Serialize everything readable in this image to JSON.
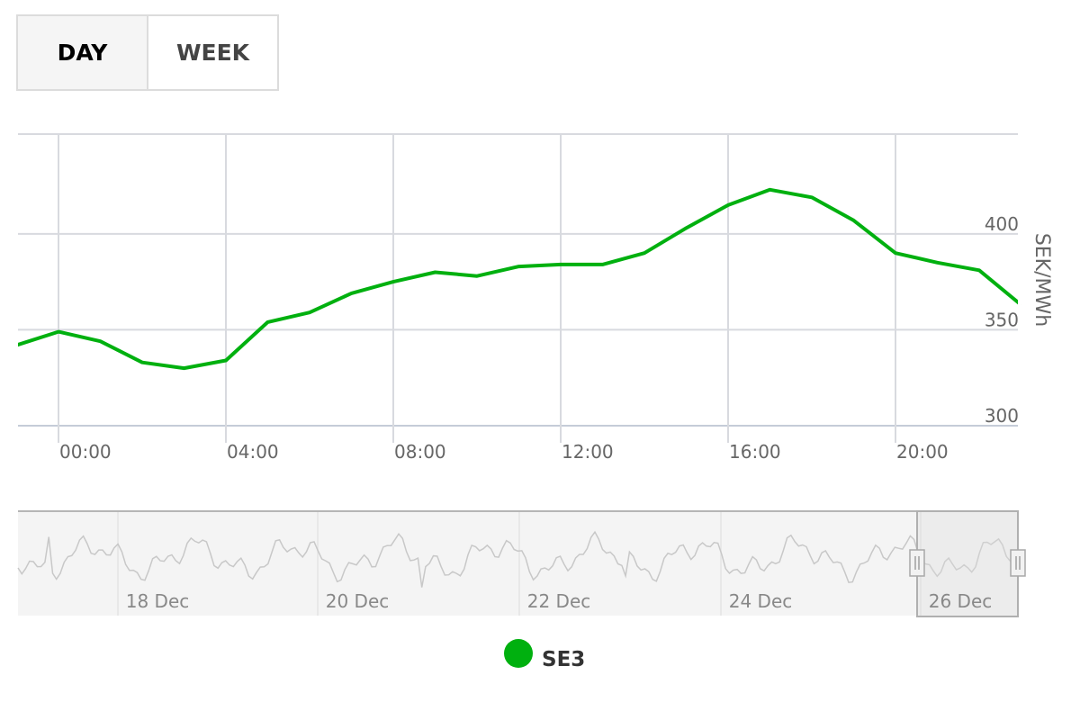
{
  "range_tabs": [
    {
      "label": "DAY",
      "active": true
    },
    {
      "label": "WEEK",
      "active": false
    }
  ],
  "chart_data": {
    "type": "line",
    "title": "",
    "xlabel": "",
    "ylabel": "SEK/MWh",
    "x_ticks": [
      "00:00",
      "04:00",
      "08:00",
      "12:00",
      "16:00",
      "20:00"
    ],
    "y_ticks": [
      300,
      350,
      400
    ],
    "ylim": [
      300,
      452
    ],
    "grid": true,
    "legend_position": "bottom",
    "series": [
      {
        "name": "SE3",
        "color": "#00b00f",
        "x": [
          "23:00",
          "00:00",
          "01:00",
          "02:00",
          "03:00",
          "04:00",
          "05:00",
          "06:00",
          "07:00",
          "08:00",
          "09:00",
          "10:00",
          "11:00",
          "12:00",
          "13:00",
          "14:00",
          "15:00",
          "16:00",
          "17:00",
          "18:00",
          "19:00",
          "20:00",
          "21:00",
          "22:00",
          "23:00"
        ],
        "values": [
          342,
          349,
          344,
          333,
          330,
          334,
          354,
          359,
          369,
          375,
          380,
          378,
          383,
          384,
          384,
          390,
          403,
          415,
          423,
          419,
          407,
          390,
          385,
          381,
          363
        ]
      }
    ],
    "navigator": {
      "labels": [
        "18 Dec",
        "20 Dec",
        "22 Dec",
        "24 Dec",
        "26 Dec"
      ],
      "selected_range": [
        "26 Dec 00:00",
        "26 Dec 23:00"
      ]
    }
  }
}
